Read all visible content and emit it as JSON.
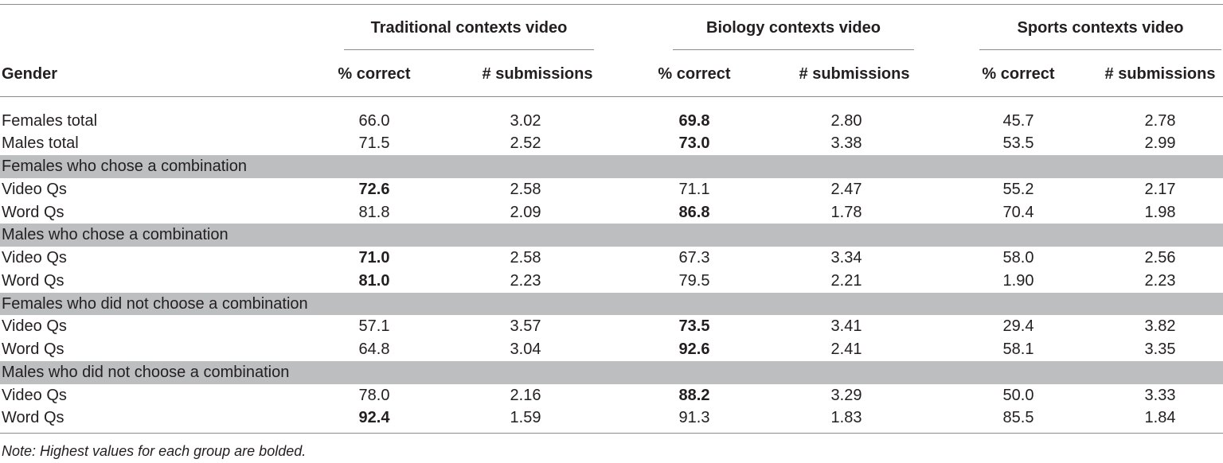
{
  "groups": [
    {
      "label": "Traditional contexts video"
    },
    {
      "label": "Biology contexts video"
    },
    {
      "label": "Sports contexts video"
    }
  ],
  "columns": {
    "gender": "Gender",
    "pct": "% correct",
    "subs": "# submissions"
  },
  "rows": [
    {
      "type": "data",
      "label": "Females total",
      "values": [
        "66.0",
        "3.02",
        "69.8",
        "2.80",
        "45.7",
        "2.78"
      ],
      "bold": [
        false,
        false,
        true,
        false,
        false,
        false
      ]
    },
    {
      "type": "data",
      "label": "Males total",
      "values": [
        "71.5",
        "2.52",
        "73.0",
        "3.38",
        "53.5",
        "2.99"
      ],
      "bold": [
        false,
        false,
        true,
        false,
        false,
        false
      ]
    },
    {
      "type": "section",
      "label": "Females who chose a combination"
    },
    {
      "type": "data",
      "label": "Video Qs",
      "values": [
        "72.6",
        "2.58",
        "71.1",
        "2.47",
        "55.2",
        "2.17"
      ],
      "bold": [
        true,
        false,
        false,
        false,
        false,
        false
      ]
    },
    {
      "type": "data",
      "label": "Word Qs",
      "values": [
        "81.8",
        "2.09",
        "86.8",
        "1.78",
        "70.4",
        "1.98"
      ],
      "bold": [
        false,
        false,
        true,
        false,
        false,
        false
      ]
    },
    {
      "type": "section",
      "label": "Males who chose a combination"
    },
    {
      "type": "data",
      "label": "Video Qs",
      "values": [
        "71.0",
        "2.58",
        "67.3",
        "3.34",
        "58.0",
        "2.56"
      ],
      "bold": [
        true,
        false,
        false,
        false,
        false,
        false
      ]
    },
    {
      "type": "data",
      "label": "Word Qs",
      "values": [
        "81.0",
        "2.23",
        "79.5",
        "2.21",
        "1.90",
        "2.23"
      ],
      "bold": [
        true,
        false,
        false,
        false,
        false,
        false
      ]
    },
    {
      "type": "section",
      "label": "Females who did not choose a combination"
    },
    {
      "type": "data",
      "label": "Video Qs",
      "values": [
        "57.1",
        "3.57",
        "73.5",
        "3.41",
        "29.4",
        "3.82"
      ],
      "bold": [
        false,
        false,
        true,
        false,
        false,
        false
      ]
    },
    {
      "type": "data",
      "label": "Word Qs",
      "values": [
        "64.8",
        "3.04",
        "92.6",
        "2.41",
        "58.1",
        "3.35"
      ],
      "bold": [
        false,
        false,
        true,
        false,
        false,
        false
      ]
    },
    {
      "type": "section",
      "label": "Males who did not choose a combination"
    },
    {
      "type": "data",
      "label": "Video Qs",
      "values": [
        "78.0",
        "2.16",
        "88.2",
        "3.29",
        "50.0",
        "3.33"
      ],
      "bold": [
        false,
        false,
        true,
        false,
        false,
        false
      ]
    },
    {
      "type": "data",
      "label": "Word Qs",
      "values": [
        "92.4",
        "1.59",
        "91.3",
        "1.83",
        "85.5",
        "1.84"
      ],
      "bold": [
        true,
        false,
        false,
        false,
        false,
        false
      ]
    }
  ],
  "note": "Note: Highest values for each group are bolded."
}
